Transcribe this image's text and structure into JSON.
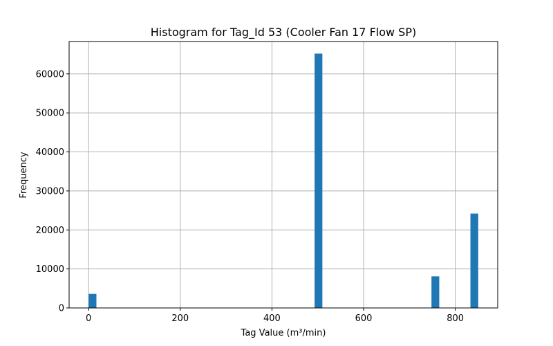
{
  "chart_data": {
    "type": "bar",
    "title": "Histogram for Tag_Id 53 (Cooler Fan 17 Flow SP)",
    "xlabel": "Tag Value (m³/min)",
    "ylabel": "Frequency",
    "xlim": [
      -42.5,
      892.5
    ],
    "ylim": [
      0,
      68300
    ],
    "xticks": [
      0,
      200,
      400,
      600,
      800
    ],
    "yticks": [
      0,
      10000,
      20000,
      30000,
      40000,
      50000,
      60000
    ],
    "grid": true,
    "bin_width": 17,
    "bins": [
      {
        "x0": 0,
        "x1": 17,
        "count": 3600
      },
      {
        "x0": 493,
        "x1": 510,
        "count": 65200
      },
      {
        "x0": 748,
        "x1": 765,
        "count": 8100
      },
      {
        "x0": 833,
        "x1": 850,
        "count": 24200
      }
    ],
    "colors": {
      "bar": "#1f77b4",
      "grid": "#b0b0b0",
      "axis": "#000000"
    }
  }
}
